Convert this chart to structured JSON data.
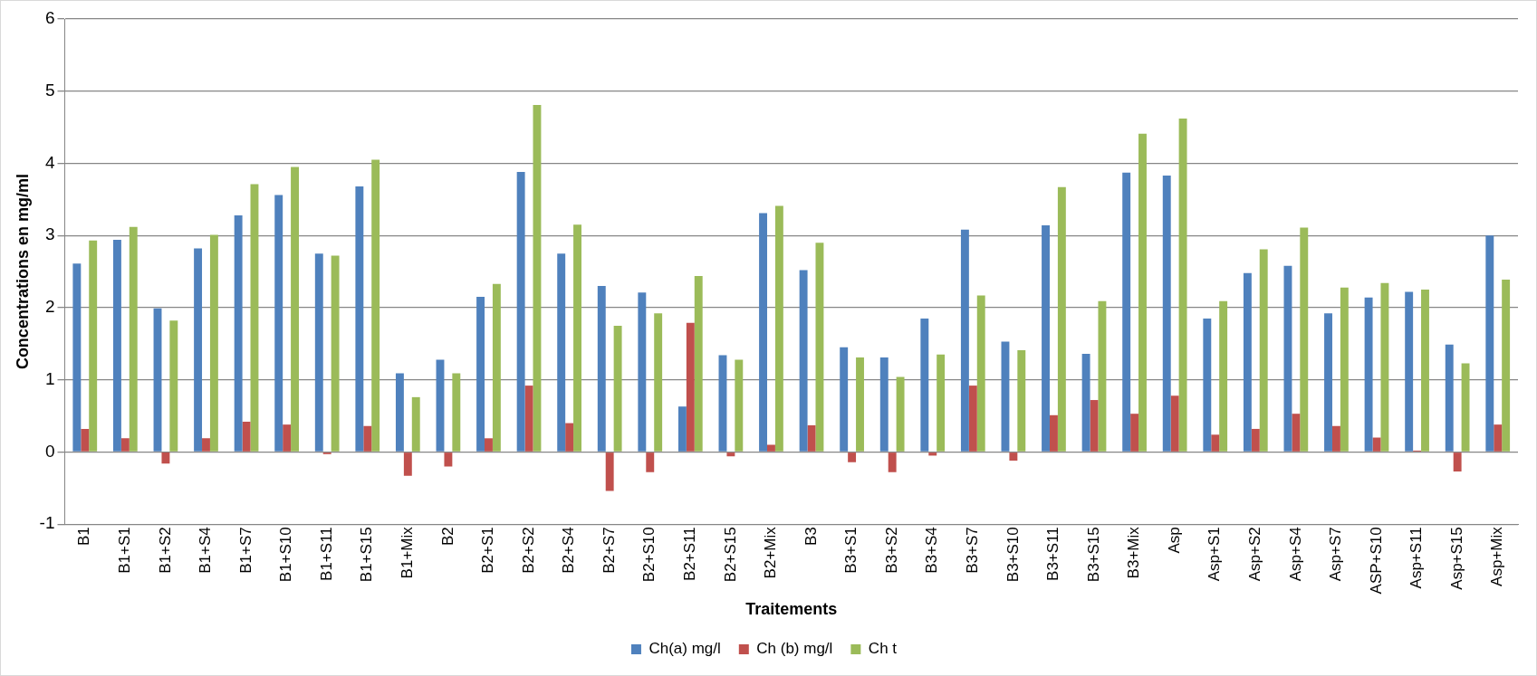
{
  "chart_data": {
    "type": "bar",
    "xlabel": "Traitements",
    "ylabel": "Concentrations en mg/ml",
    "categories": [
      "B1",
      "B1+S1",
      "B1+S2",
      "B1+S4",
      "B1+S7",
      "B1+S10",
      "B1+S11",
      "B1+S15",
      "B1+Mix",
      "B2",
      "B2+S1",
      "B2+S2",
      "B2+S4",
      "B2+S7",
      "B2+S10",
      "B2+S11",
      "B2+S15",
      "B2+Mix",
      "B3",
      "B3+S1",
      "B3+S2",
      "B3+S4",
      "B3+S7",
      "B3+S10",
      "B3+S11",
      "B3+S15",
      "B3+Mix",
      "Asp",
      "Asp+S1",
      "Asp+S2",
      "Asp+S4",
      "Asp+S7",
      "ASP+S10",
      "Asp+S11",
      "Asp+S15",
      "Asp+Mix"
    ],
    "series": [
      {
        "name": "Ch(a) mg/l",
        "color": "#4f81bd",
        "values": [
          2.61,
          2.94,
          1.99,
          2.82,
          3.28,
          3.56,
          2.75,
          3.68,
          1.09,
          1.28,
          2.15,
          3.88,
          2.75,
          2.3,
          2.21,
          0.63,
          1.34,
          3.31,
          2.52,
          1.45,
          1.31,
          1.85,
          3.08,
          1.53,
          3.14,
          1.36,
          3.87,
          3.83,
          1.85,
          2.48,
          2.58,
          1.92,
          2.14,
          2.22,
          1.49,
          3.0
        ]
      },
      {
        "name": "Ch (b) mg/l",
        "color": "#c0504d",
        "values": [
          0.32,
          0.19,
          -0.16,
          0.19,
          0.42,
          0.38,
          -0.03,
          0.36,
          -0.33,
          -0.2,
          0.19,
          0.92,
          0.4,
          -0.54,
          -0.28,
          1.79,
          -0.06,
          0.1,
          0.37,
          -0.14,
          -0.28,
          -0.05,
          0.92,
          -0.12,
          0.51,
          0.72,
          0.53,
          0.78,
          0.24,
          0.32,
          0.53,
          0.36,
          0.2,
          0.02,
          -0.27,
          0.38
        ]
      },
      {
        "name": "Ch t",
        "color": "#9bbb59",
        "values": [
          2.93,
          3.12,
          1.82,
          3.01,
          3.71,
          3.95,
          2.72,
          4.05,
          0.76,
          1.09,
          2.33,
          4.81,
          3.15,
          1.75,
          1.92,
          2.44,
          1.28,
          3.41,
          2.9,
          1.31,
          1.04,
          1.35,
          2.17,
          1.41,
          3.67,
          2.09,
          4.41,
          4.62,
          2.09,
          2.81,
          3.11,
          2.28,
          2.34,
          2.25,
          1.23,
          2.39
        ]
      }
    ],
    "ylim": [
      -1,
      6
    ],
    "yticks": [
      -1,
      0,
      1,
      2,
      3,
      4,
      5,
      6
    ],
    "grid": "y",
    "legend": "bottom"
  }
}
